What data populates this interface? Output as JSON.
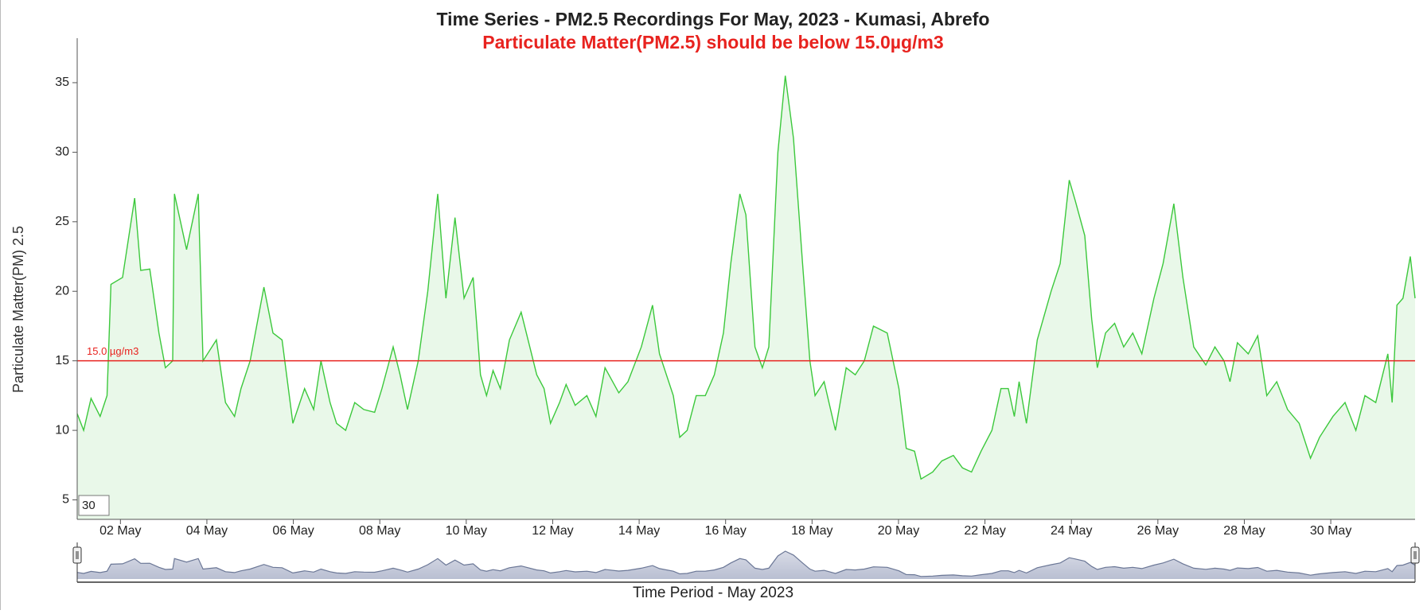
{
  "chart_data": {
    "type": "area",
    "title": "Time Series - PM2.5 Recordings For May, 2023 - Kumasi, Abrefo",
    "subtitle": "Particulate Matter(PM2.5) should be below 15.0µg/m3",
    "y_label": "Particulate Matter(PM) 2.5",
    "x_label": "Time Period - May 2023",
    "color": "#3cc83c",
    "fill": "#e9f8e9",
    "threshold": 15,
    "threshold_label": "15.0 µg/m3",
    "threshold_color": "#e8231f",
    "range_input": 30,
    "xlim": [
      1,
      31.95
    ],
    "xticks": [
      {
        "value": 2,
        "label": "02 May"
      },
      {
        "value": 4,
        "label": "04 May"
      },
      {
        "value": 6,
        "label": "06 May"
      },
      {
        "value": 8,
        "label": "08 May"
      },
      {
        "value": 10,
        "label": "10 May"
      },
      {
        "value": 12,
        "label": "12 May"
      },
      {
        "value": 14,
        "label": "14 May"
      },
      {
        "value": 16,
        "label": "16 May"
      },
      {
        "value": 18,
        "label": "18 May"
      },
      {
        "value": 20,
        "label": "20 May"
      },
      {
        "value": 22,
        "label": "22 May"
      },
      {
        "value": 24,
        "label": "24 May"
      },
      {
        "value": 26,
        "label": "26 May"
      },
      {
        "value": 28,
        "label": "28 May"
      },
      {
        "value": 30,
        "label": "30 May"
      }
    ],
    "ylim": [
      3.6,
      38.2
    ],
    "yticks": [
      5,
      10,
      15,
      20,
      25,
      30,
      35
    ],
    "x": [
      1.0,
      1.15,
      1.32,
      1.53,
      1.69,
      1.78,
      2.05,
      2.33,
      2.47,
      2.68,
      2.89,
      3.04,
      3.21,
      3.25,
      3.53,
      3.8,
      3.91,
      4.22,
      4.43,
      4.64,
      4.79,
      5.0,
      5.32,
      5.53,
      5.74,
      5.99,
      6.26,
      6.47,
      6.64,
      6.85,
      7.0,
      7.21,
      7.42,
      7.63,
      7.88,
      8.05,
      8.31,
      8.47,
      8.64,
      8.89,
      9.11,
      9.34,
      9.53,
      9.74,
      9.95,
      10.16,
      10.33,
      10.47,
      10.62,
      10.79,
      11.0,
      11.27,
      11.63,
      11.8,
      11.95,
      12.16,
      12.31,
      12.52,
      12.79,
      13.0,
      13.21,
      13.53,
      13.74,
      14.05,
      14.31,
      14.47,
      14.79,
      14.94,
      15.11,
      15.32,
      15.53,
      15.74,
      15.95,
      16.12,
      16.33,
      16.47,
      16.68,
      16.85,
      17.0,
      17.21,
      17.38,
      17.57,
      17.78,
      17.95,
      18.07,
      18.28,
      18.54,
      18.79,
      19.0,
      19.21,
      19.42,
      19.74,
      20.01,
      20.18,
      20.37,
      20.52,
      20.79,
      21.0,
      21.27,
      21.48,
      21.69,
      21.91,
      22.16,
      22.37,
      22.54,
      22.68,
      22.79,
      22.96,
      23.21,
      23.53,
      23.74,
      23.95,
      24.09,
      24.31,
      24.47,
      24.6,
      24.79,
      25.0,
      25.21,
      25.42,
      25.63,
      25.91,
      26.12,
      26.37,
      26.58,
      26.83,
      27.11,
      27.32,
      27.53,
      27.67,
      27.84,
      28.09,
      28.31,
      28.52,
      28.75,
      29.0,
      29.27,
      29.53,
      29.74,
      30.05,
      30.33,
      30.58,
      30.79,
      31.04,
      31.32,
      31.42,
      31.53,
      31.67,
      31.84,
      31.95
    ],
    "values": [
      11.2,
      10,
      12.3,
      11,
      12.5,
      20.5,
      21,
      26.7,
      21.5,
      21.6,
      17,
      14.5,
      15,
      27,
      23,
      27,
      15,
      16.5,
      12,
      11,
      13,
      15,
      20.3,
      17,
      16.5,
      10.5,
      13,
      11.5,
      15,
      12,
      10.5,
      10,
      12,
      11.5,
      11.3,
      13,
      16,
      14,
      11.5,
      15,
      20,
      27,
      19.5,
      25.3,
      19.5,
      21,
      14,
      12.5,
      14.3,
      13,
      16.5,
      18.5,
      14,
      13,
      10.5,
      12,
      13.3,
      11.8,
      12.5,
      11,
      14.5,
      12.7,
      13.5,
      16,
      19,
      15.5,
      12.5,
      9.5,
      10,
      12.5,
      12.5,
      14,
      17,
      22,
      27,
      25.5,
      16,
      14.5,
      16,
      30,
      35.5,
      31,
      22,
      15,
      12.5,
      13.5,
      10,
      14.5,
      14,
      15,
      17.5,
      17,
      13,
      8.7,
      8.5,
      6.5,
      7,
      7.8,
      8.2,
      7.3,
      7,
      8.5,
      10,
      13,
      13,
      11,
      13.5,
      10.5,
      16.5,
      20,
      22,
      28,
      26.5,
      24,
      18,
      14.5,
      17,
      17.7,
      16,
      17,
      15.5,
      19.5,
      22,
      26.3,
      21,
      16,
      14.7,
      16,
      15,
      13.5,
      16.3,
      15.5,
      16.8,
      12.5,
      13.5,
      11.5,
      10.5,
      8,
      9.5,
      11,
      12,
      10,
      12.5,
      12,
      15.5,
      12,
      19,
      19.5,
      22.5,
      19.5
    ]
  }
}
